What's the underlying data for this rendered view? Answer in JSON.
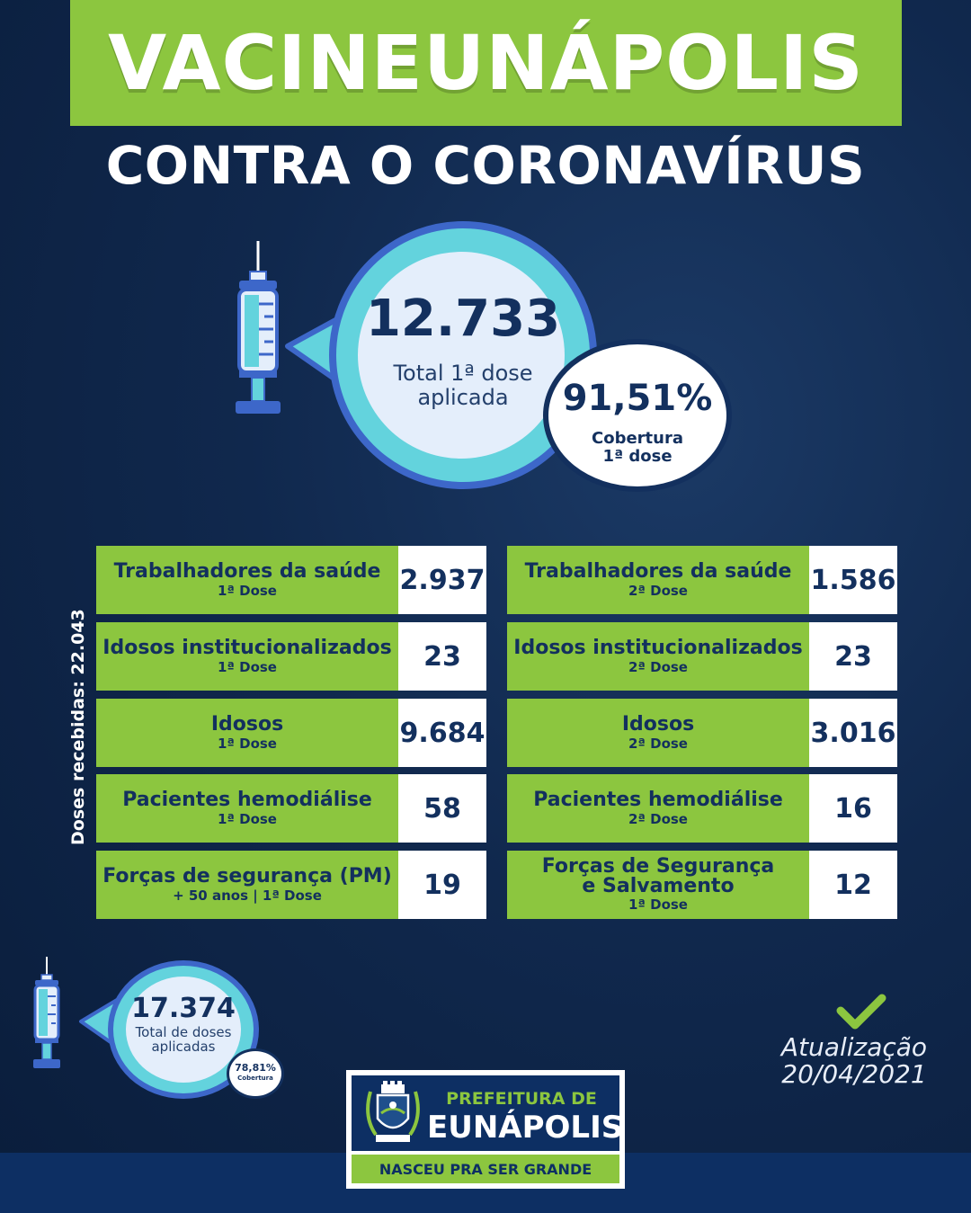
{
  "header": {
    "title": "VACINEUNÁPOLIS",
    "subtitle": "CONTRA O CORONAVÍRUS"
  },
  "first_dose": {
    "total_value": "12.733",
    "total_label_line1": "Total 1ª dose",
    "total_label_line2": "aplicada",
    "coverage_value": "91,51%",
    "coverage_label_line1": "Cobertura",
    "coverage_label_line2": "1ª dose"
  },
  "doses_received_label": "Doses recebidas: 22.043",
  "left_table": [
    {
      "name": "Trabalhadores da saúde",
      "dose": "1ª Dose",
      "value": "2.937"
    },
    {
      "name": "Idosos institucionalizados",
      "dose": "1ª Dose",
      "value": "23"
    },
    {
      "name": "Idosos",
      "dose": "1ª Dose",
      "value": "9.684"
    },
    {
      "name": "Pacientes hemodiálise",
      "dose": "1ª Dose",
      "value": "58"
    },
    {
      "name": "Forças de segurança (PM)",
      "dose": "+ 50 anos | 1ª Dose",
      "value": "19"
    }
  ],
  "right_table": [
    {
      "name": "Trabalhadores da saúde",
      "dose": "2ª Dose",
      "value": "1.586"
    },
    {
      "name": "Idosos institucionalizados",
      "dose": "2ª Dose",
      "value": "23"
    },
    {
      "name": "Idosos",
      "dose": "2ª Dose",
      "value": "3.016"
    },
    {
      "name": "Pacientes hemodiálise",
      "dose": "2ª Dose",
      "value": "16"
    },
    {
      "name": "Forças de Segurança e Salvamento",
      "name_line1": "Forças de Segurança",
      "name_line2": "e Salvamento",
      "dose": "1ª Dose",
      "value": "12"
    }
  ],
  "total_doses": {
    "value": "17.374",
    "label_line1": "Total de doses",
    "label_line2": "aplicadas",
    "coverage_value": "78,81%",
    "coverage_label": "Cobertura"
  },
  "update": {
    "label": "Atualização",
    "date": "20/04/2021"
  },
  "logo": {
    "prefeitura": "PREFEITURA DE",
    "city": "EUNÁPOLIS",
    "slogan": "NASCEU PRA SER GRANDE"
  },
  "colors": {
    "green": "#8cc63f",
    "navy": "#13305e",
    "cyan": "#63d3dd",
    "blue": "#3d67c9"
  },
  "icons": [
    "syringe-icon",
    "check-icon",
    "coat-of-arms-icon"
  ]
}
